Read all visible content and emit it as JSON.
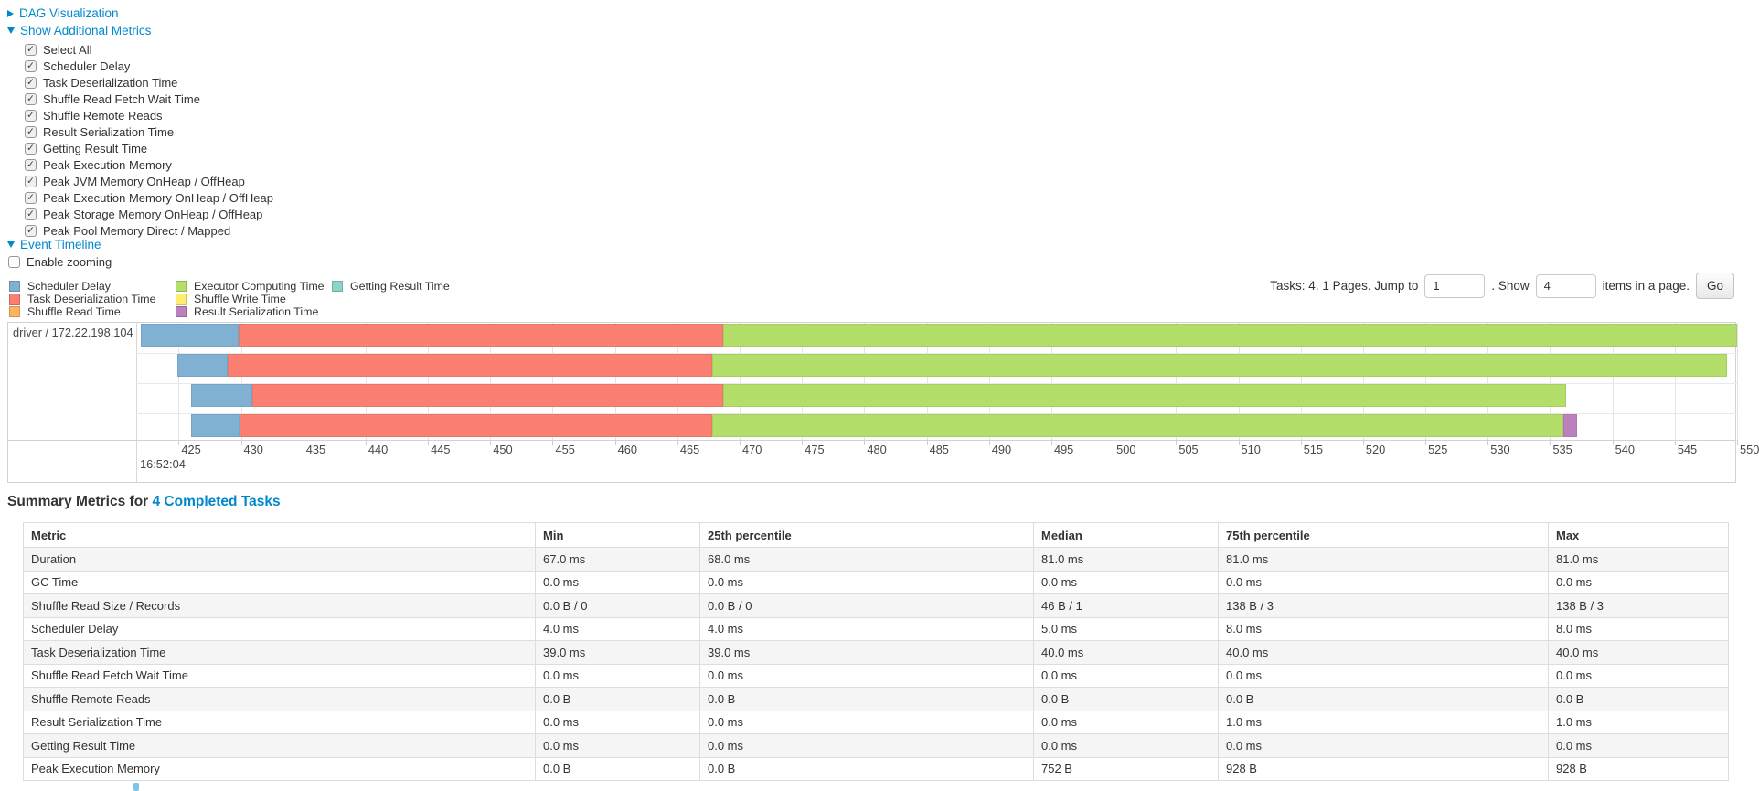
{
  "colors": {
    "link": "#0088cc",
    "segments": {
      "scheduler_delay": "#80B1D3",
      "task_deserialization": "#FB8072",
      "shuffle_read": "#FDB462",
      "executor_computing": "#B3DE69",
      "shuffle_write": "#FFED6F",
      "result_serialization": "#BC80BD",
      "getting_result": "#8DD3C7"
    }
  },
  "dag_section": {
    "label": "DAG Visualization",
    "collapsed": true
  },
  "metrics_panel": {
    "label": "Show Additional Metrics",
    "items": [
      {
        "label": "Select All",
        "checked": true
      },
      {
        "label": "Scheduler Delay",
        "checked": true
      },
      {
        "label": "Task Deserialization Time",
        "checked": true
      },
      {
        "label": "Shuffle Read Fetch Wait Time",
        "checked": true
      },
      {
        "label": "Shuffle Remote Reads",
        "checked": true
      },
      {
        "label": "Result Serialization Time",
        "checked": true
      },
      {
        "label": "Getting Result Time",
        "checked": true
      },
      {
        "label": "Peak Execution Memory",
        "checked": true
      },
      {
        "label": "Peak JVM Memory OnHeap / OffHeap",
        "checked": true
      },
      {
        "label": "Peak Execution Memory OnHeap / OffHeap",
        "checked": true
      },
      {
        "label": "Peak Storage Memory OnHeap / OffHeap",
        "checked": true
      },
      {
        "label": "Peak Pool Memory Direct / Mapped",
        "checked": true
      }
    ]
  },
  "timeline_section": {
    "label": "Event Timeline",
    "enable_zooming_label": "Enable zooming",
    "enable_zooming_checked": false
  },
  "legend": {
    "columns": [
      [
        {
          "label": "Scheduler Delay",
          "type": "scheduler_delay"
        },
        {
          "label": "Task Deserialization Time",
          "type": "task_deserialization"
        },
        {
          "label": "Shuffle Read Time",
          "type": "shuffle_read"
        }
      ],
      [
        {
          "label": "Executor Computing Time",
          "type": "executor_computing"
        },
        {
          "label": "Shuffle Write Time",
          "type": "shuffle_write"
        },
        {
          "label": "Result Serialization Time",
          "type": "result_serialization"
        }
      ],
      [
        {
          "label": "Getting Result Time",
          "type": "getting_result"
        }
      ]
    ]
  },
  "pagination": {
    "prefix": "Tasks: 4. 1 Pages. Jump to",
    "jump_value": "1",
    "mid": ". Show",
    "show_value": "4",
    "suffix": "items in a page.",
    "go_label": "Go"
  },
  "chart_data": {
    "type": "timeline",
    "group_label": "driver / 172.22.198.104",
    "x_axis": {
      "min": 425,
      "max": 550,
      "step": 5,
      "axis_left_value": 421.6,
      "origin_label": "16:52:04"
    },
    "tasks": [
      {
        "segments": [
          {
            "type": "scheduler_delay",
            "start": 422.0,
            "end": 429.8
          },
          {
            "type": "task_deserialization",
            "start": 429.8,
            "end": 468.7
          },
          {
            "type": "executor_computing",
            "start": 468.7,
            "end": 550.0
          }
        ]
      },
      {
        "segments": [
          {
            "type": "scheduler_delay",
            "start": 424.9,
            "end": 428.9
          },
          {
            "type": "task_deserialization",
            "start": 428.9,
            "end": 467.8
          },
          {
            "type": "executor_computing",
            "start": 467.8,
            "end": 549.2
          }
        ]
      },
      {
        "segments": [
          {
            "type": "scheduler_delay",
            "start": 426.0,
            "end": 430.9
          },
          {
            "type": "task_deserialization",
            "start": 430.9,
            "end": 468.7
          },
          {
            "type": "executor_computing",
            "start": 468.7,
            "end": 536.3
          }
        ]
      },
      {
        "segments": [
          {
            "type": "scheduler_delay",
            "start": 426.0,
            "end": 429.9
          },
          {
            "type": "task_deserialization",
            "start": 429.9,
            "end": 467.8
          },
          {
            "type": "executor_computing",
            "start": 467.8,
            "end": 536.1
          },
          {
            "type": "result_serialization",
            "start": 536.1,
            "end": 537.2
          }
        ]
      }
    ]
  },
  "summary": {
    "title_prefix": "Summary Metrics for ",
    "title_link": "4 Completed Tasks",
    "columns": [
      "Metric",
      "Min",
      "25th percentile",
      "Median",
      "75th percentile",
      "Max"
    ],
    "rows": [
      {
        "metric": "Duration",
        "values": [
          "67.0 ms",
          "68.0 ms",
          "81.0 ms",
          "81.0 ms",
          "81.0 ms"
        ]
      },
      {
        "metric": "GC Time",
        "values": [
          "0.0 ms",
          "0.0 ms",
          "0.0 ms",
          "0.0 ms",
          "0.0 ms"
        ]
      },
      {
        "metric": "Shuffle Read Size / Records",
        "values": [
          "0.0 B / 0",
          "0.0 B / 0",
          "46 B / 1",
          "138 B / 3",
          "138 B / 3"
        ]
      },
      {
        "metric": "Scheduler Delay",
        "values": [
          "4.0 ms",
          "4.0 ms",
          "5.0 ms",
          "8.0 ms",
          "8.0 ms"
        ]
      },
      {
        "metric": "Task Deserialization Time",
        "values": [
          "39.0 ms",
          "39.0 ms",
          "40.0 ms",
          "40.0 ms",
          "40.0 ms"
        ]
      },
      {
        "metric": "Shuffle Read Fetch Wait Time",
        "values": [
          "0.0 ms",
          "0.0 ms",
          "0.0 ms",
          "0.0 ms",
          "0.0 ms"
        ]
      },
      {
        "metric": "Shuffle Remote Reads",
        "values": [
          "0.0 B",
          "0.0 B",
          "0.0 B",
          "0.0 B",
          "0.0 B"
        ]
      },
      {
        "metric": "Result Serialization Time",
        "values": [
          "0.0 ms",
          "0.0 ms",
          "0.0 ms",
          "1.0 ms",
          "1.0 ms"
        ]
      },
      {
        "metric": "Getting Result Time",
        "values": [
          "0.0 ms",
          "0.0 ms",
          "0.0 ms",
          "0.0 ms",
          "0.0 ms"
        ]
      },
      {
        "metric": "Peak Execution Memory",
        "values": [
          "0.0 B",
          "0.0 B",
          "752 B",
          "928 B",
          "928 B"
        ]
      }
    ]
  }
}
